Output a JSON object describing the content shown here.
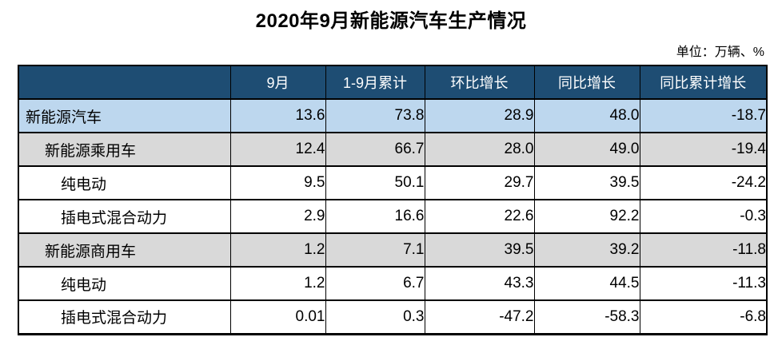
{
  "title": "2020年9月新能源汽车生产情况",
  "unit_note": "单位：万辆、%",
  "colors": {
    "header_bg": "#1E4D73",
    "header_text": "#FFFFFF",
    "total_row_bg": "#BDD7EE",
    "subtotal_row_bg": "#D9D9D9",
    "detail_row_bg": "#FFFFFF",
    "border": "#000000"
  },
  "chart_data": {
    "type": "table",
    "title": "2020年9月新能源汽车生产情况",
    "unit": "单位：万辆、%",
    "columns": [
      "",
      "9月",
      "1-9月累计",
      "环比增长",
      "同比增长",
      "同比累计增长"
    ],
    "rows": [
      {
        "label": "新能源汽车",
        "indent": 0,
        "style": "highlight",
        "values": [
          "13.6",
          "73.8",
          "28.9",
          "48.0",
          "-18.7"
        ]
      },
      {
        "label": "新能源乘用车",
        "indent": 1,
        "style": "subtotal",
        "values": [
          "12.4",
          "66.7",
          "28.0",
          "49.0",
          "-19.4"
        ]
      },
      {
        "label": "纯电动",
        "indent": 2,
        "style": "plain",
        "values": [
          "9.5",
          "50.1",
          "29.7",
          "39.5",
          "-24.2"
        ]
      },
      {
        "label": "插电式混合动力",
        "indent": 2,
        "style": "plain",
        "values": [
          "2.9",
          "16.6",
          "22.6",
          "92.2",
          "-0.3"
        ]
      },
      {
        "label": "新能源商用车",
        "indent": 1,
        "style": "subtotal",
        "values": [
          "1.2",
          "7.1",
          "39.5",
          "39.2",
          "-11.8"
        ]
      },
      {
        "label": "纯电动",
        "indent": 2,
        "style": "plain",
        "values": [
          "1.2",
          "6.7",
          "43.3",
          "44.5",
          "-11.3"
        ]
      },
      {
        "label": "插电式混合动力",
        "indent": 2,
        "style": "plain",
        "values": [
          "0.01",
          "0.3",
          "-47.2",
          "-58.3",
          "-6.8"
        ]
      }
    ]
  }
}
